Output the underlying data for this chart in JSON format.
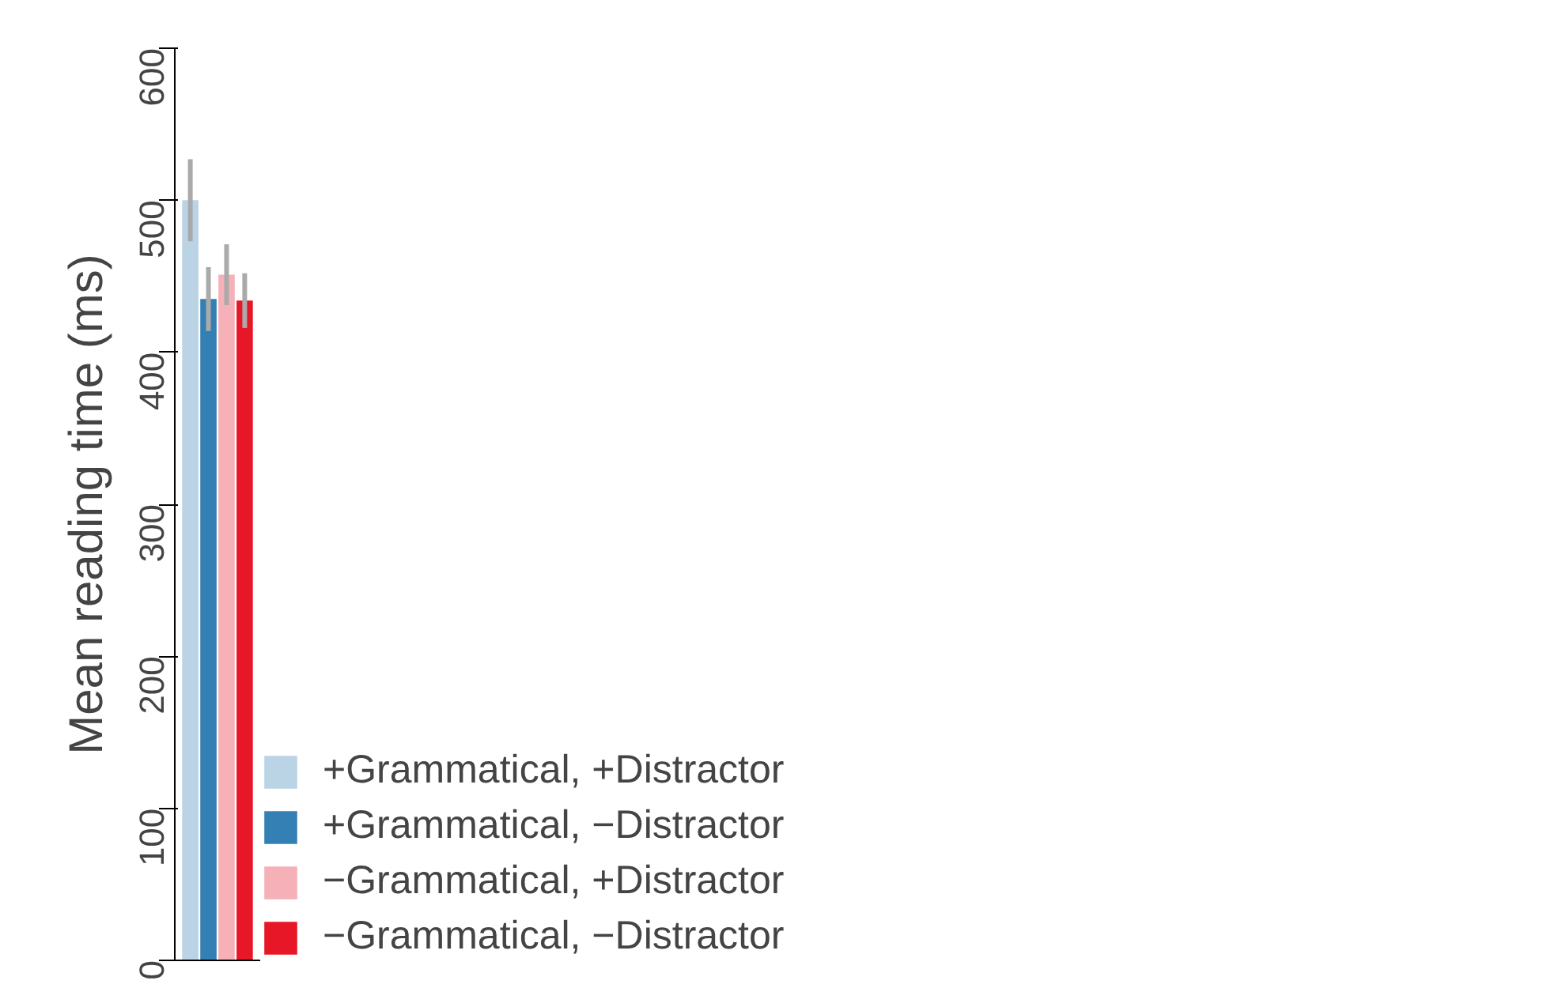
{
  "chart_data": {
    "type": "bar",
    "ylabel": "Mean reading time (ms)",
    "categories": [
      null
    ],
    "series": [
      {
        "name": "+Grammatical, +Distractor",
        "color": "#bad3e5",
        "values": [
          500
        ],
        "errors": [
          27
        ]
      },
      {
        "name": "+Grammatical, −Distractor",
        "color": "#3480b5",
        "values": [
          435
        ],
        "errors": [
          21
        ]
      },
      {
        "name": "−Grammatical, +Distractor",
        "color": "#f6b0b8",
        "values": [
          451
        ],
        "errors": [
          20
        ]
      },
      {
        "name": "−Grammatical, −Distractor",
        "color": "#e81727",
        "values": [
          434
        ],
        "errors": [
          18
        ]
      }
    ],
    "ylim": [
      0,
      600
    ],
    "yticks": [
      0,
      100,
      200,
      300,
      400,
      500,
      600
    ],
    "tick_labels": "y",
    "grid": false,
    "legend": "bottom right"
  }
}
